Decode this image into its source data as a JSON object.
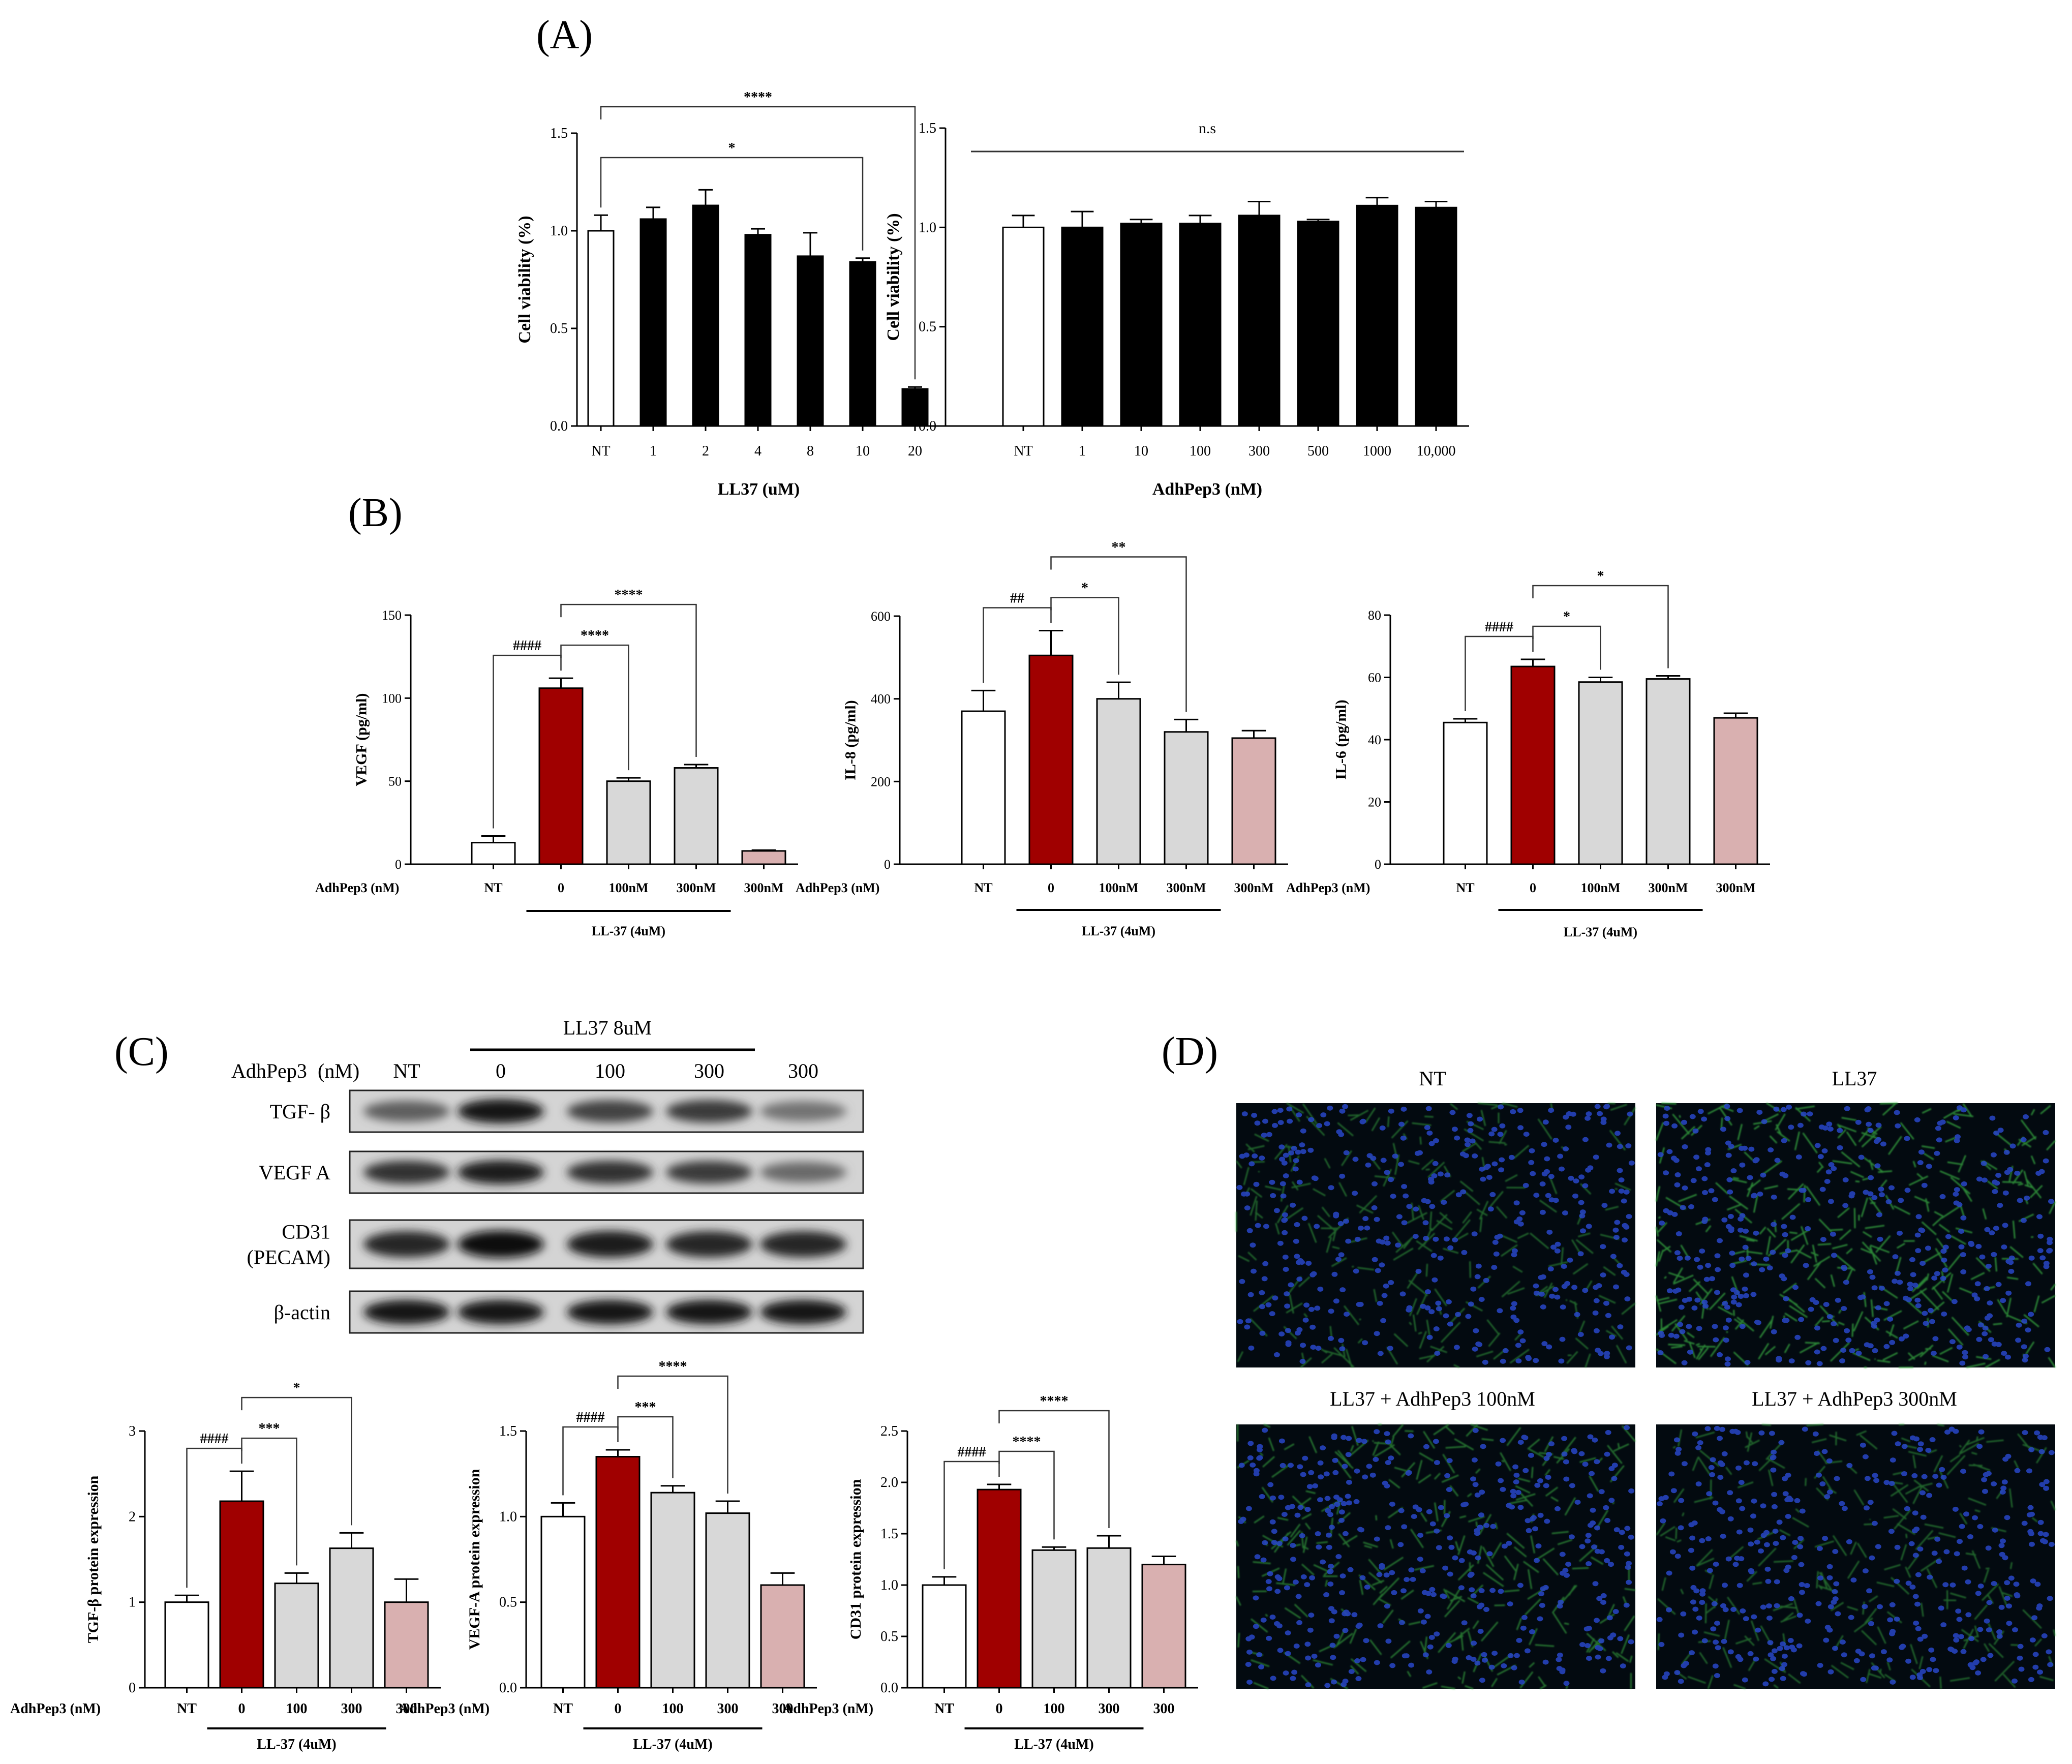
{
  "panel_labels": [
    "(A)",
    "(B)",
    "(C)",
    "(D)"
  ],
  "colors": {
    "white": "#ffffff",
    "black": "#000000",
    "red": "#a00000",
    "gray": "#d8d8d8",
    "pink": "#d9b0b0"
  },
  "chart_data": [
    {
      "id": "A1",
      "type": "bar",
      "ylabel": "Cell viability (%)",
      "xlabel": "LL37 (uM)",
      "ylim": [
        0,
        1.5
      ],
      "yticks": [
        "0.0",
        "0.5",
        "1.0",
        "1.5"
      ],
      "categories": [
        "NT",
        "1",
        "2",
        "4",
        "8",
        "10",
        "20"
      ],
      "values": [
        1.0,
        1.06,
        1.13,
        0.98,
        0.87,
        0.84,
        0.19
      ],
      "errors": [
        0.08,
        0.06,
        0.08,
        0.03,
        0.12,
        0.02,
        0.01
      ],
      "fills": [
        "white",
        "black",
        "black",
        "black",
        "black",
        "black",
        "black"
      ],
      "annotations": [
        {
          "from": 0,
          "to": 5,
          "label": "*"
        },
        {
          "from": 0,
          "to": 6,
          "label": "****"
        }
      ]
    },
    {
      "id": "A2",
      "type": "bar",
      "ylabel": "Cell viability (%)",
      "xlabel": "AdhPep3 (nM)",
      "ylim": [
        0,
        1.5
      ],
      "yticks": [
        "0.0",
        "0.5",
        "1.0",
        "1.5"
      ],
      "categories": [
        "NT",
        "1",
        "10",
        "100",
        "300",
        "500",
        "1000",
        "10,000"
      ],
      "values": [
        1.0,
        1.0,
        1.02,
        1.02,
        1.06,
        1.03,
        1.11,
        1.1
      ],
      "errors": [
        0.06,
        0.08,
        0.02,
        0.04,
        0.07,
        0.01,
        0.04,
        0.03
      ],
      "fills": [
        "white",
        "black",
        "black",
        "black",
        "black",
        "black",
        "black",
        "black"
      ],
      "ns_label": "n.s"
    },
    {
      "id": "B1",
      "type": "bar",
      "ylabel": "VEGF (pg/ml)",
      "xlabel_prefix": "AdhPep3 (nM)",
      "group_label": "LL-37 (4uM)",
      "ylim": [
        0,
        150
      ],
      "yticks": [
        "0",
        "50",
        "100",
        "150"
      ],
      "categories": [
        "NT",
        "0",
        "100nM",
        "300nM",
        "300nM"
      ],
      "values": [
        13,
        106,
        50,
        58,
        8
      ],
      "errors": [
        4,
        6,
        2,
        2,
        0.5
      ],
      "fills": [
        "white",
        "red",
        "gray",
        "gray",
        "pink"
      ],
      "annotations": [
        {
          "from": 0,
          "to": 1,
          "label": "####"
        },
        {
          "from": 1,
          "to": 2,
          "label": "****"
        },
        {
          "from": 1,
          "to": 3,
          "label": "****"
        }
      ]
    },
    {
      "id": "B2",
      "type": "bar",
      "ylabel": "IL-8 (pg/ml)",
      "xlabel_prefix": "AdhPep3 (nM)",
      "group_label": "LL-37 (4uM)",
      "ylim": [
        0,
        600
      ],
      "yticks": [
        "0",
        "200",
        "400",
        "600"
      ],
      "categories": [
        "NT",
        "0",
        "100nM",
        "300nM",
        "300nM"
      ],
      "values": [
        370,
        505,
        400,
        320,
        305
      ],
      "errors": [
        50,
        60,
        40,
        30,
        18
      ],
      "fills": [
        "white",
        "red",
        "gray",
        "gray",
        "pink"
      ],
      "annotations": [
        {
          "from": 0,
          "to": 1,
          "label": "##"
        },
        {
          "from": 1,
          "to": 2,
          "label": "*"
        },
        {
          "from": 1,
          "to": 3,
          "label": "**"
        }
      ]
    },
    {
      "id": "B3",
      "type": "bar",
      "ylabel": "IL-6 (pg/ml)",
      "xlabel_prefix": "AdhPep3 (nM)",
      "group_label": "LL-37 (4uM)",
      "ylim": [
        0,
        80
      ],
      "yticks": [
        "0",
        "20",
        "40",
        "60",
        "80"
      ],
      "categories": [
        "NT",
        "0",
        "100nM",
        "300nM",
        "300nM"
      ],
      "values": [
        45.5,
        63.5,
        58.5,
        59.5,
        47
      ],
      "errors": [
        1.2,
        2.3,
        1.5,
        1.0,
        1.5
      ],
      "fills": [
        "white",
        "red",
        "gray",
        "gray",
        "pink"
      ],
      "annotations": [
        {
          "from": 0,
          "to": 1,
          "label": "####"
        },
        {
          "from": 1,
          "to": 2,
          "label": "*"
        },
        {
          "from": 1,
          "to": 3,
          "label": "*"
        }
      ]
    },
    {
      "id": "C1",
      "type": "bar",
      "ylabel": "TGF-β protein expression",
      "xlabel_prefix": "AdhPep3 (nM)",
      "group_label": "LL-37 (4uM)",
      "ylim": [
        0,
        3
      ],
      "yticks": [
        "0",
        "1",
        "2",
        "3"
      ],
      "categories": [
        "NT",
        "0",
        "100",
        "300",
        "300"
      ],
      "values": [
        1.0,
        2.18,
        1.22,
        1.63,
        1.0
      ],
      "errors": [
        0.08,
        0.35,
        0.12,
        0.18,
        0.27
      ],
      "fills": [
        "white",
        "red",
        "gray",
        "gray",
        "pink"
      ],
      "annotations": [
        {
          "from": 0,
          "to": 1,
          "label": "####"
        },
        {
          "from": 1,
          "to": 2,
          "label": "***"
        },
        {
          "from": 1,
          "to": 3,
          "label": "*"
        }
      ]
    },
    {
      "id": "C2",
      "type": "bar",
      "ylabel": "VEGF-A protein expression",
      "xlabel_prefix": "AdhPep3 (nM)",
      "group_label": "LL-37 (4uM)",
      "ylim": [
        0,
        1.5
      ],
      "yticks": [
        "0.0",
        "0.5",
        "1.0",
        "1.5"
      ],
      "categories": [
        "NT",
        "0",
        "100",
        "300",
        "300"
      ],
      "values": [
        1.0,
        1.35,
        1.14,
        1.02,
        0.6
      ],
      "errors": [
        0.08,
        0.04,
        0.04,
        0.07,
        0.07
      ],
      "fills": [
        "white",
        "red",
        "gray",
        "gray",
        "pink"
      ],
      "annotations": [
        {
          "from": 0,
          "to": 1,
          "label": "####"
        },
        {
          "from": 1,
          "to": 2,
          "label": "***"
        },
        {
          "from": 1,
          "to": 3,
          "label": "****"
        }
      ]
    },
    {
      "id": "C3",
      "type": "bar",
      "ylabel": "CD31 protein expression",
      "xlabel_prefix": "AdhPep3 (nM)",
      "group_label": "LL-37 (4uM)",
      "ylim": [
        0,
        2.5
      ],
      "yticks": [
        "0.0",
        "0.5",
        "1.0",
        "1.5",
        "2.0",
        "2.5"
      ],
      "categories": [
        "NT",
        "0",
        "100",
        "300",
        "300"
      ],
      "values": [
        1.0,
        1.93,
        1.34,
        1.36,
        1.2
      ],
      "errors": [
        0.08,
        0.05,
        0.03,
        0.12,
        0.08
      ],
      "fills": [
        "white",
        "red",
        "gray",
        "gray",
        "pink"
      ],
      "annotations": [
        {
          "from": 0,
          "to": 1,
          "label": "####"
        },
        {
          "from": 1,
          "to": 2,
          "label": "****"
        },
        {
          "from": 1,
          "to": 3,
          "label": "****"
        }
      ]
    }
  ],
  "blot": {
    "group_label": "LL37 8uM",
    "header_label": "AdhPep3",
    "header_unit": "(nM)",
    "lanes": [
      "NT",
      "0",
      "100",
      "300",
      "300"
    ],
    "rows": [
      {
        "label": "TGF- β",
        "intensity": [
          0.55,
          0.95,
          0.7,
          0.75,
          0.45
        ]
      },
      {
        "label": "VEGF A",
        "intensity": [
          0.8,
          0.9,
          0.8,
          0.75,
          0.5
        ]
      },
      {
        "label": "CD31\n(PECAM)",
        "intensity": [
          0.85,
          1.0,
          0.9,
          0.85,
          0.85
        ]
      },
      {
        "label": "β-actin",
        "intensity": [
          0.95,
          0.95,
          0.95,
          0.95,
          0.95
        ]
      }
    ]
  },
  "micrographs": {
    "titles": [
      "NT",
      "LL37",
      "LL37 + AdhPep3  100nM",
      "LL37 + AdhPep3  300nM"
    ],
    "green_density": [
      0.35,
      0.75,
      0.5,
      0.35
    ]
  }
}
